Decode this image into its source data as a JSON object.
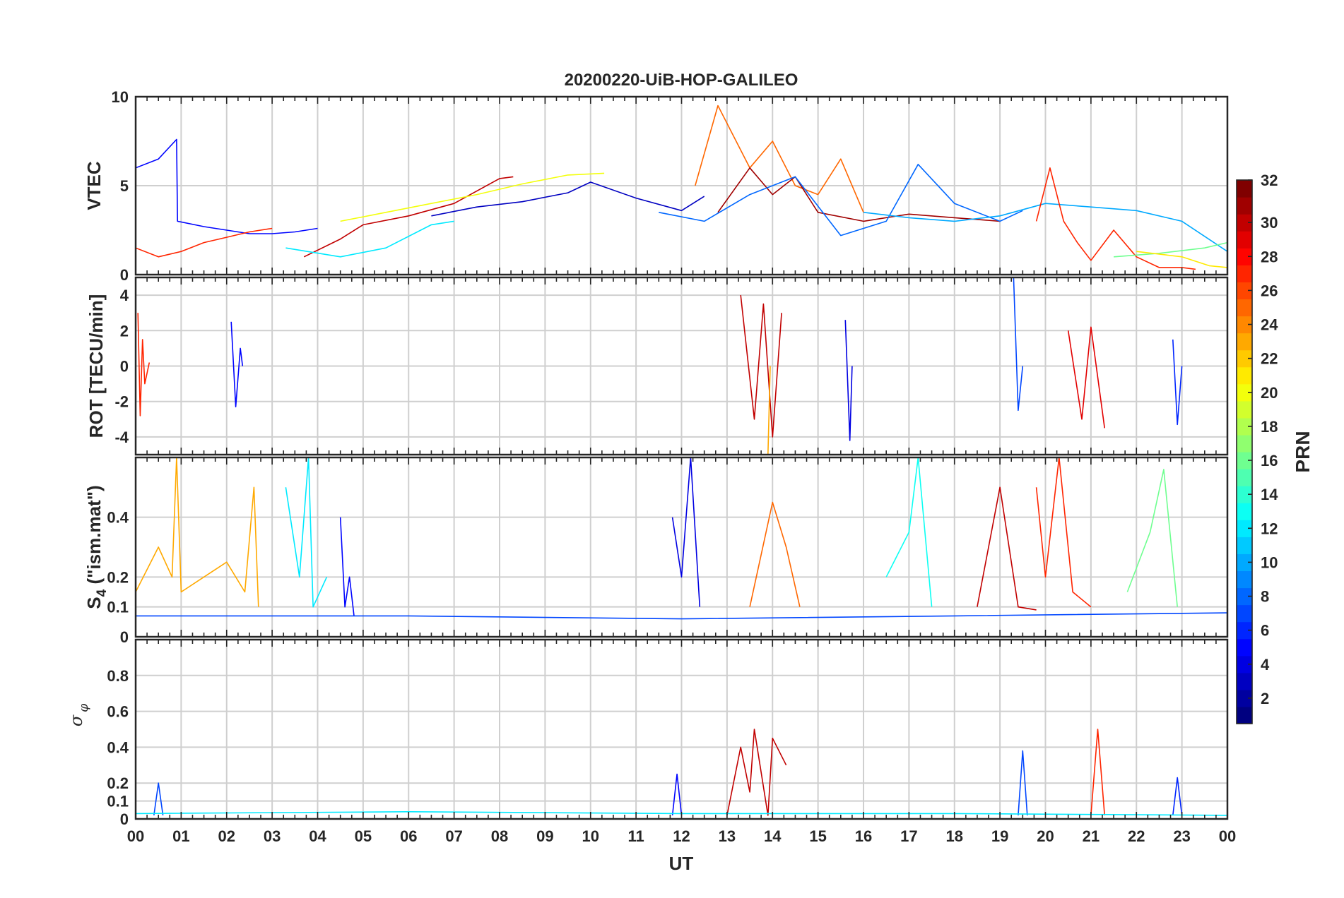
{
  "figure": {
    "title": "20200220-UiB-HOP-GALILEO",
    "xlabel": "UT"
  },
  "chart_data": [
    {
      "type": "line",
      "id": "vtec",
      "ylabel": "VTEC",
      "ylim": [
        0,
        10
      ],
      "yticks": [
        0,
        5,
        10
      ],
      "xlim": [
        0,
        24
      ],
      "grid": true,
      "series": [
        {
          "prn": 5,
          "x": [
            0,
            0.5,
            0.9,
            0.92,
            1.5,
            2,
            2.5,
            3,
            3.5,
            4
          ],
          "y": [
            6,
            6.5,
            7.6,
            3,
            2.7,
            2.5,
            2.3,
            2.3,
            2.4,
            2.6
          ]
        },
        {
          "prn": 27,
          "x": [
            0,
            0.5,
            1,
            1.5,
            2,
            2.5,
            3
          ],
          "y": [
            1.5,
            1,
            1.3,
            1.8,
            2.1,
            2.4,
            2.6
          ]
        },
        {
          "prn": 30,
          "x": [
            3.7,
            4.5,
            5,
            6,
            7,
            8,
            8.3
          ],
          "y": [
            1,
            2,
            2.8,
            3.3,
            4,
            5.4,
            5.5
          ]
        },
        {
          "prn": 12,
          "x": [
            3.3,
            4.5,
            5.5,
            6.5,
            7
          ],
          "y": [
            1.5,
            1,
            1.5,
            2.8,
            3
          ]
        },
        {
          "prn": 20,
          "x": [
            4.5,
            5.5,
            6.5,
            7.5,
            8.5,
            9.5,
            10.3
          ],
          "y": [
            3,
            3.5,
            4,
            4.5,
            5.1,
            5.6,
            5.7
          ]
        },
        {
          "prn": 3,
          "x": [
            6.5,
            7.5,
            8.5,
            9.5,
            10,
            11,
            12,
            12.5
          ],
          "y": [
            3.3,
            3.8,
            4.1,
            4.6,
            5.2,
            4.3,
            3.6,
            4.4
          ]
        },
        {
          "prn": 25,
          "x": [
            12.3,
            12.8,
            13.5,
            14,
            14.5,
            15,
            15.5,
            16
          ],
          "y": [
            5,
            9.5,
            6,
            7.5,
            5,
            4.5,
            6.5,
            3.5
          ]
        },
        {
          "prn": 31,
          "x": [
            12.8,
            13.5,
            14,
            14.5,
            15,
            16,
            17,
            18,
            19
          ],
          "y": [
            3.5,
            6,
            4.5,
            5.5,
            3.5,
            3,
            3.4,
            3.2,
            3
          ]
        },
        {
          "prn": 8,
          "x": [
            11.5,
            12.5,
            13.5,
            14.5,
            15.5,
            16.5,
            17.2,
            18,
            19,
            19.5
          ],
          "y": [
            3.5,
            3,
            4.5,
            5.5,
            2.2,
            3,
            6.2,
            4,
            3,
            3.6
          ]
        },
        {
          "prn": 10,
          "x": [
            16,
            17,
            18,
            19,
            20,
            21,
            22,
            23,
            24
          ],
          "y": [
            3.5,
            3.2,
            3,
            3.3,
            4,
            3.8,
            3.6,
            3,
            1.3
          ]
        },
        {
          "prn": 27,
          "x": [
            19.8,
            20.1,
            20.4,
            20.7,
            21,
            21.5,
            22,
            22.5,
            23,
            23.3
          ],
          "y": [
            3,
            6,
            3,
            1.8,
            0.8,
            2.5,
            1,
            0.4,
            0.4,
            0.3
          ]
        },
        {
          "prn": 16,
          "x": [
            21.5,
            22.5,
            23.5,
            24
          ],
          "y": [
            1,
            1.2,
            1.5,
            1.8
          ]
        },
        {
          "prn": 21,
          "x": [
            22,
            23,
            23.6,
            24
          ],
          "y": [
            1.3,
            1,
            0.5,
            0.4
          ]
        }
      ]
    },
    {
      "type": "line",
      "id": "rot",
      "ylabel": "ROT [TECU/min]",
      "ylim": [
        -5,
        5
      ],
      "yticks": [
        -4,
        -2,
        0,
        2,
        4
      ],
      "xlim": [
        0,
        24
      ],
      "grid": true,
      "series": [
        {
          "prn": 27,
          "x": [
            0.05,
            0.1,
            0.15,
            0.2,
            0.3
          ],
          "y": [
            3,
            -2.8,
            1.5,
            -1,
            0.2
          ]
        },
        {
          "prn": 5,
          "x": [
            2.1,
            2.2,
            2.3,
            2.35
          ],
          "y": [
            2.5,
            -2.3,
            1,
            0
          ]
        },
        {
          "prn": 30,
          "x": [
            13.3,
            13.6,
            13.8,
            14,
            14.2
          ],
          "y": [
            4,
            -3,
            3.5,
            -4,
            3
          ]
        },
        {
          "prn": 23,
          "x": [
            13.9,
            13.95
          ],
          "y": [
            -5,
            0
          ]
        },
        {
          "prn": 4,
          "x": [
            15.6,
            15.7,
            15.75
          ],
          "y": [
            2.6,
            -4.2,
            0
          ]
        },
        {
          "prn": 7,
          "x": [
            19.3,
            19.4,
            19.5
          ],
          "y": [
            5,
            -2.5,
            0
          ]
        },
        {
          "prn": 29,
          "x": [
            20.5,
            20.8,
            21,
            21.3
          ],
          "y": [
            2,
            -3,
            2.2,
            -3.5
          ]
        },
        {
          "prn": 6,
          "x": [
            22.8,
            22.9,
            23
          ],
          "y": [
            1.5,
            -3.3,
            0
          ]
        }
      ]
    },
    {
      "type": "line",
      "id": "s4",
      "ylabel": "S4 (\"ism.mat\")",
      "ylim": [
        0,
        0.6
      ],
      "yticks": [
        0,
        0.1,
        0.2,
        0.4
      ],
      "xlim": [
        0,
        24
      ],
      "grid": true,
      "series": [
        {
          "prn": 23,
          "x": [
            0,
            0.5,
            0.8,
            0.9,
            1,
            1.5,
            2,
            2.4,
            2.6,
            2.7
          ],
          "y": [
            0.15,
            0.3,
            0.2,
            0.6,
            0.15,
            0.2,
            0.25,
            0.15,
            0.5,
            0.1
          ]
        },
        {
          "prn": 12,
          "x": [
            3.3,
            3.6,
            3.8,
            3.9,
            4.2
          ],
          "y": [
            0.5,
            0.2,
            0.6,
            0.1,
            0.2
          ]
        },
        {
          "prn": 5,
          "x": [
            4.5,
            4.6,
            4.7,
            4.8
          ],
          "y": [
            0.4,
            0.1,
            0.2,
            0.07
          ]
        },
        {
          "prn": 4,
          "x": [
            11.8,
            12,
            12.2,
            12.4
          ],
          "y": [
            0.4,
            0.2,
            0.6,
            0.1
          ]
        },
        {
          "prn": 25,
          "x": [
            13.5,
            14,
            14.3,
            14.6
          ],
          "y": [
            0.1,
            0.45,
            0.3,
            0.1
          ]
        },
        {
          "prn": 13,
          "x": [
            16.5,
            17,
            17.2,
            17.5
          ],
          "y": [
            0.2,
            0.35,
            0.6,
            0.1
          ]
        },
        {
          "prn": 30,
          "x": [
            18.5,
            19,
            19.4,
            19.8
          ],
          "y": [
            0.1,
            0.5,
            0.1,
            0.09
          ]
        },
        {
          "prn": 27,
          "x": [
            19.8,
            20,
            20.3,
            20.6,
            21
          ],
          "y": [
            0.5,
            0.2,
            0.6,
            0.15,
            0.1
          ]
        },
        {
          "prn": 16,
          "x": [
            21.8,
            22.3,
            22.6,
            22.9
          ],
          "y": [
            0.15,
            0.35,
            0.56,
            0.1
          ]
        },
        {
          "prn": 7,
          "x": [
            0,
            6,
            12,
            18,
            24
          ],
          "y": [
            0.07,
            0.07,
            0.06,
            0.07,
            0.08
          ]
        }
      ]
    },
    {
      "type": "line",
      "id": "sigma_phi",
      "ylabel": "σφ",
      "ylim": [
        0,
        1
      ],
      "yticks": [
        0,
        0.1,
        0.2,
        0.4,
        0.6,
        0.8
      ],
      "xlim": [
        0,
        24
      ],
      "grid": true,
      "series": [
        {
          "prn": 7,
          "x": [
            0.4,
            0.5,
            0.6
          ],
          "y": [
            0.02,
            0.2,
            0.02
          ]
        },
        {
          "prn": 30,
          "x": [
            13,
            13.3,
            13.5,
            13.6,
            13.9,
            14,
            14.3
          ],
          "y": [
            0.02,
            0.4,
            0.15,
            0.5,
            0.02,
            0.45,
            0.3
          ]
        },
        {
          "prn": 5,
          "x": [
            11.8,
            11.9,
            12
          ],
          "y": [
            0.02,
            0.25,
            0.02
          ]
        },
        {
          "prn": 7,
          "x": [
            19.4,
            19.5,
            19.6
          ],
          "y": [
            0.02,
            0.38,
            0.02
          ]
        },
        {
          "prn": 27,
          "x": [
            21,
            21.15,
            21.3
          ],
          "y": [
            0.02,
            0.5,
            0.02
          ]
        },
        {
          "prn": 6,
          "x": [
            22.8,
            22.9,
            23
          ],
          "y": [
            0.02,
            0.23,
            0.02
          ]
        },
        {
          "prn": 12,
          "x": [
            0,
            6,
            12,
            18,
            24
          ],
          "y": [
            0.03,
            0.04,
            0.03,
            0.03,
            0.02
          ]
        }
      ]
    }
  ],
  "xaxis": {
    "ticks": [
      0,
      1,
      2,
      3,
      4,
      5,
      6,
      7,
      8,
      9,
      10,
      11,
      12,
      13,
      14,
      15,
      16,
      17,
      18,
      19,
      20,
      21,
      22,
      23,
      24
    ],
    "ticklabels": [
      "00",
      "01",
      "02",
      "03",
      "04",
      "05",
      "06",
      "07",
      "08",
      "09",
      "10",
      "11",
      "12",
      "13",
      "14",
      "15",
      "16",
      "17",
      "18",
      "19",
      "20",
      "21",
      "22",
      "23",
      "00"
    ]
  },
  "colorbar": {
    "label": "PRN",
    "colormap": "jet",
    "range": [
      1,
      32
    ],
    "ticks": [
      2,
      4,
      6,
      8,
      10,
      12,
      14,
      16,
      18,
      20,
      22,
      24,
      26,
      28,
      30,
      32
    ]
  }
}
